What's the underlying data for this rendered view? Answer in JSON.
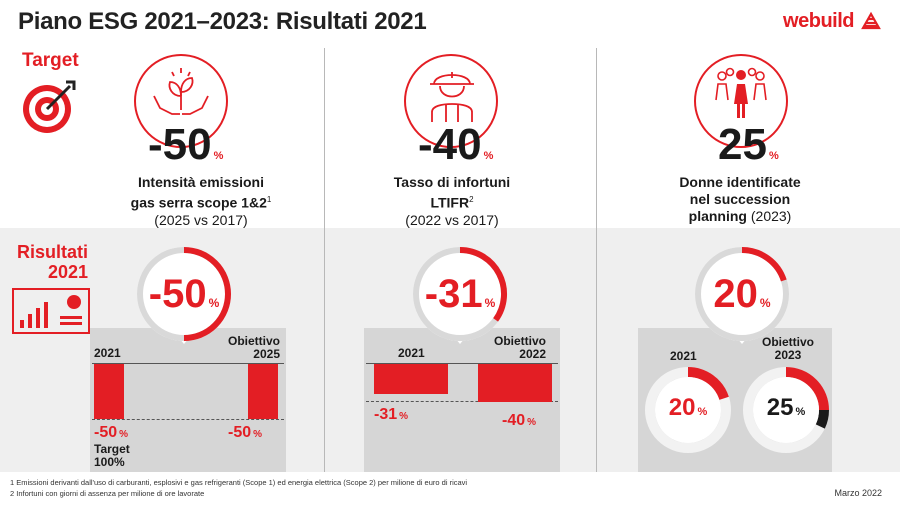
{
  "title": "Piano ESG 2021–2023: Risultati 2021",
  "brand": {
    "name": "webuild",
    "color": "#e31e24"
  },
  "target_label": "Target",
  "results_label_line1": "Risultati",
  "results_label_line2": "2021",
  "kpis": [
    {
      "target_value": "-50",
      "desc_line1": "Intensità emissioni",
      "desc_line2": "gas serra scope 1&2",
      "desc_sup": "1",
      "desc_line3": "(2025 vs 2017)",
      "result_value": "-50",
      "label_left": "2021",
      "label_right_1": "Obiettivo",
      "label_right_2": "2025",
      "bar_left": "-50",
      "bar_right": "-50",
      "note_1": "Target",
      "note_2": "100%"
    },
    {
      "target_value": "-40",
      "desc_line1": "Tasso di infortuni",
      "desc_line2": "LTIFR",
      "desc_sup": "2",
      "desc_line3": "(2022 vs 2017)",
      "result_value": "-31",
      "label_left": "2021",
      "label_right_1": "Obiettivo",
      "label_right_2": "2022",
      "bar_left": "-31",
      "bar_right": "-40"
    },
    {
      "target_value": "25",
      "desc_line1": "Donne identificate",
      "desc_line2": "nel succession",
      "desc_line3_bold": "planning",
      "desc_line3": "(2023)",
      "result_value": "20",
      "label_left": "2021",
      "label_right_1": "Obiettivo",
      "label_right_2": "2023",
      "donut_left": "20",
      "donut_right": "25"
    }
  ],
  "pct_sign": "%",
  "footnotes": [
    "1 Emissioni derivanti dall'uso di carburanti, esplosivi e gas refrigeranti (Scope 1) ed energia elettrica (Scope 2) per milione di euro di ricavi",
    "2 Infortuni con giorni di assenza per milione di ore lavorate"
  ],
  "date": "Marzo 2022",
  "icons": [
    "target-icon",
    "plant-hands-icon",
    "worker-helmet-icon",
    "women-group-icon",
    "dashboard-chart-icon"
  ]
}
